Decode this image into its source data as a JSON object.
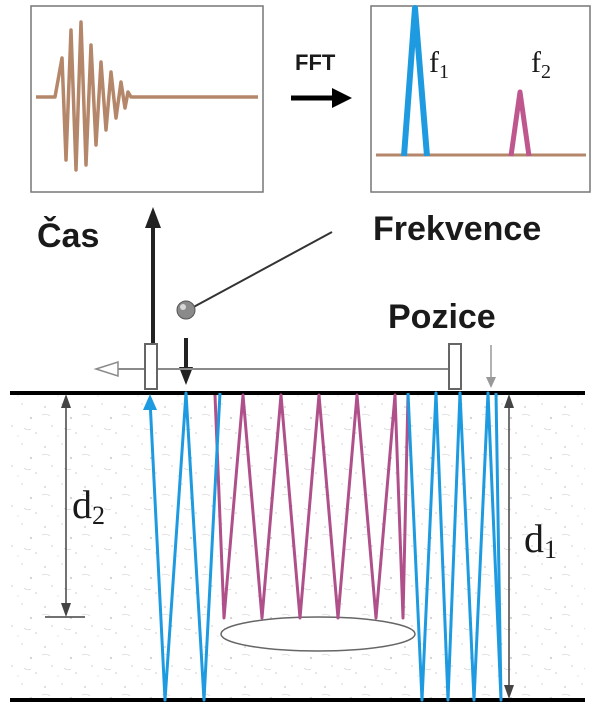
{
  "labels": {
    "time": "Čas",
    "frequency": "Frekvence",
    "position": "Pozice",
    "fft": "FFT",
    "f1_base": "f",
    "f1_sub": "1",
    "f2_base": "f",
    "f2_sub": "2",
    "d1_base": "d",
    "d1_sub": "1",
    "d2_base": "d",
    "d2_sub": "2"
  },
  "colors": {
    "time_signal": "#b5876a",
    "baseline": "#b5876a",
    "peak_f1": "#1e9be0",
    "peak_f2": "#c0568e",
    "thickness_wave": "#1e9be0",
    "defect_wave": "#b0508a",
    "surface_line": "#000000",
    "background": "#ffffff"
  }
}
